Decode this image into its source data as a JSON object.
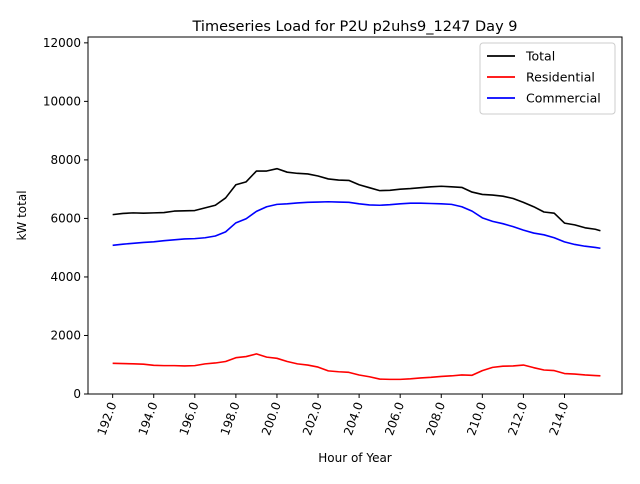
{
  "chart_data": {
    "type": "line",
    "title": "Timeseries Load for P2U p2uhs9_1247  Day 9",
    "xlabel": "Hour of Year",
    "ylabel": "kW total",
    "xlim": [
      190.8,
      216.8
    ],
    "ylim": [
      0,
      12200
    ],
    "x_ticks": [
      192,
      194,
      196,
      198,
      200,
      202,
      204,
      206,
      208,
      210,
      212,
      214
    ],
    "x_tick_labels": [
      "192.0",
      "194.0",
      "196.0",
      "198.0",
      "200.0",
      "202.0",
      "204.0",
      "206.0",
      "208.0",
      "210.0",
      "212.0",
      "214.0"
    ],
    "y_ticks": [
      0,
      2000,
      4000,
      6000,
      8000,
      10000,
      12000
    ],
    "y_tick_labels": [
      "0",
      "2000",
      "4000",
      "6000",
      "8000",
      "10000",
      "12000"
    ],
    "legend_position": "top-right",
    "x": [
      192,
      192.5,
      193,
      193.5,
      194,
      194.5,
      195,
      195.5,
      196,
      196.5,
      197,
      197.5,
      198,
      198.5,
      199,
      199.5,
      200,
      200.5,
      201,
      201.5,
      202,
      202.5,
      203,
      203.5,
      204,
      204.5,
      205,
      205.5,
      206,
      206.5,
      207,
      207.5,
      208,
      208.5,
      209,
      209.5,
      210,
      210.5,
      211,
      211.5,
      212,
      212.5,
      213,
      213.5,
      214,
      214.5,
      215,
      215.5,
      215.75
    ],
    "series": [
      {
        "name": "Total",
        "color": "#000000",
        "values": [
          6130,
          6170,
          6190,
          6180,
          6190,
          6200,
          6250,
          6260,
          6270,
          6360,
          6450,
          6700,
          7150,
          7250,
          7620,
          7620,
          7700,
          7580,
          7540,
          7520,
          7450,
          7350,
          7310,
          7300,
          7150,
          7050,
          6950,
          6960,
          7000,
          7020,
          7050,
          7080,
          7100,
          7080,
          7060,
          6900,
          6820,
          6800,
          6760,
          6680,
          6550,
          6400,
          6220,
          6180,
          5840,
          5780,
          5680,
          5630,
          5580
        ]
      },
      {
        "name": "Residential",
        "color": "#ff0000",
        "values": [
          1050,
          1040,
          1030,
          1020,
          980,
          970,
          970,
          960,
          970,
          1030,
          1060,
          1110,
          1240,
          1280,
          1370,
          1260,
          1220,
          1110,
          1030,
          990,
          920,
          790,
          760,
          740,
          650,
          590,
          510,
          500,
          500,
          520,
          550,
          570,
          600,
          620,
          650,
          640,
          800,
          910,
          950,
          960,
          990,
          900,
          820,
          800,
          700,
          680,
          650,
          630,
          620
        ]
      },
      {
        "name": "Commercial",
        "color": "#0000ff",
        "values": [
          5080,
          5120,
          5150,
          5180,
          5200,
          5240,
          5270,
          5300,
          5310,
          5340,
          5400,
          5540,
          5850,
          5990,
          6240,
          6400,
          6480,
          6500,
          6530,
          6550,
          6560,
          6570,
          6560,
          6550,
          6500,
          6460,
          6450,
          6470,
          6500,
          6520,
          6520,
          6510,
          6500,
          6480,
          6400,
          6250,
          6020,
          5900,
          5820,
          5720,
          5600,
          5500,
          5440,
          5340,
          5200,
          5110,
          5050,
          5010,
          4980
        ]
      }
    ]
  }
}
